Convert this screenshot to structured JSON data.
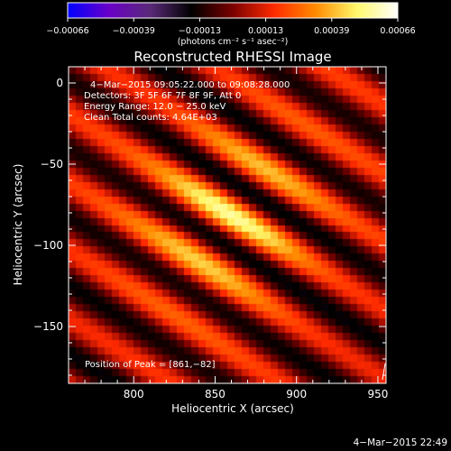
{
  "chart_data": {
    "type": "heatmap",
    "title": "Reconstructed RHESSI Image",
    "xlabel": "Heliocentric X (arcsec)",
    "ylabel": "Heliocentric Y (arcsec)",
    "xlim": [
      760,
      955
    ],
    "ylim": [
      -185,
      10
    ],
    "x_ticks": [
      "800",
      "850",
      "900",
      "950"
    ],
    "y_ticks": [
      "0",
      "−50",
      "−100",
      "−150"
    ],
    "colorbar": {
      "label": "(photons cm⁻² s⁻¹ asec⁻²)",
      "ticks": [
        "−0.00066",
        "−0.00039",
        "−0.00013",
        "0.00013",
        "0.00039",
        "0.00066"
      ],
      "range": [
        -0.00066,
        0.00066
      ],
      "colors": [
        "#0000ff",
        "#6a00c8",
        "#5a2a78",
        "#000000",
        "#7a0000",
        "#ff2a00",
        "#ff8a00",
        "#fff86a",
        "#ffffff"
      ]
    },
    "info_lines": [
      "4−Mar−2015 09:05:22.000 to 09:08:28.000",
      "Detectors: 3F 5F 6F 7F 8F 9F, Att 0",
      "Energy Range: 12.0 − 25.0 keV",
      "Clean    Total counts: 4.64E+03"
    ],
    "peak_label": "Position of Peak = [861,−82]",
    "peak": [
      861,
      -82
    ],
    "field": {
      "stripe_period_arcsec": 36,
      "stripe_direction": [
        0.53,
        0.85
      ],
      "peak_value": 0.00066,
      "min_value": -0.00045
    }
  },
  "footer": {
    "timestamp": "4−Mar−2015 22:49"
  }
}
